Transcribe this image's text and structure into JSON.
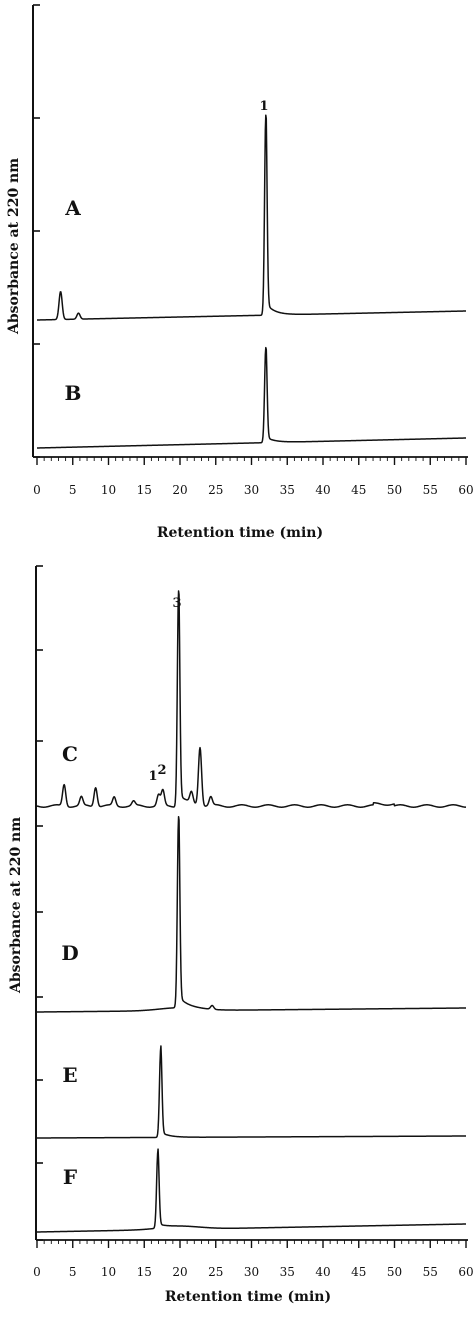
{
  "chart_data": [
    {
      "type": "line",
      "xlabel": "Retention time (min)",
      "ylabel": "Absorbance at 220 nm",
      "xlim": [
        0,
        60
      ],
      "xticks": [
        "0",
        "5",
        "10",
        "15",
        "20",
        "25",
        "30",
        "35",
        "40",
        "45",
        "50",
        "55",
        "60"
      ],
      "grid": false,
      "series": [
        {
          "name": "A",
          "peaks": [
            {
              "rt": 3.3,
              "height": 0.14
            },
            {
              "rt": 5.8,
              "height": 0.03
            },
            {
              "rt": 32.0,
              "height": 1.0,
              "label": "1"
            }
          ]
        },
        {
          "name": "B",
          "peaks": [
            {
              "rt": 32.0,
              "height": 1.0
            }
          ]
        }
      ]
    },
    {
      "type": "line",
      "xlabel": "Retention time (min)",
      "ylabel": "Absorbance at 220 nm",
      "xlim": [
        0,
        60
      ],
      "xticks": [
        "0",
        "5",
        "10",
        "15",
        "20",
        "25",
        "30",
        "35",
        "40",
        "45",
        "50",
        "55",
        "60"
      ],
      "grid": false,
      "series": [
        {
          "name": "C",
          "peaks": [
            {
              "rt": 3.8,
              "height": 0.1
            },
            {
              "rt": 6.2,
              "height": 0.04
            },
            {
              "rt": 8.2,
              "height": 0.09
            },
            {
              "rt": 10.8,
              "height": 0.04
            },
            {
              "rt": 13.5,
              "height": 0.02
            },
            {
              "rt": 17.0,
              "height": 0.05,
              "label": "1"
            },
            {
              "rt": 17.6,
              "height": 0.07,
              "label": "2"
            },
            {
              "rt": 19.8,
              "height": 1.0,
              "label": "3"
            },
            {
              "rt": 21.6,
              "height": 0.05
            },
            {
              "rt": 22.8,
              "height": 0.27
            },
            {
              "rt": 24.3,
              "height": 0.04
            }
          ]
        },
        {
          "name": "D",
          "peaks": [
            {
              "rt": 19.8,
              "height": 1.0
            },
            {
              "rt": 24.5,
              "height": 0.02
            }
          ]
        },
        {
          "name": "E",
          "peaks": [
            {
              "rt": 17.3,
              "height": 1.0
            }
          ]
        },
        {
          "name": "F",
          "peaks": [
            {
              "rt": 16.9,
              "height": 1.0
            }
          ]
        }
      ]
    }
  ]
}
